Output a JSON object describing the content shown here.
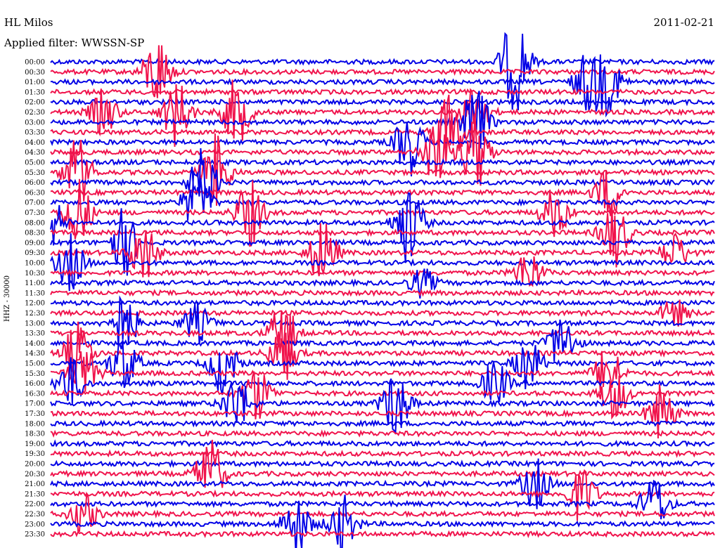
{
  "header": {
    "station": "HL Milos",
    "date": "2011-02-21",
    "filter": "Applied filter: WWSSN-SP"
  },
  "chart_data": {
    "type": "helicorder",
    "channel_label": "HHZ - 30000",
    "row_labels": [
      "00:00",
      "00:30",
      "01:00",
      "01:30",
      "02:00",
      "02:30",
      "03:00",
      "03:30",
      "04:00",
      "04:30",
      "05:00",
      "05:30",
      "06:00",
      "06:30",
      "07:00",
      "07:30",
      "08:00",
      "08:30",
      "09:00",
      "09:30",
      "10:00",
      "10:30",
      "11:00",
      "11:30",
      "12:00",
      "12:30",
      "13:00",
      "13:30",
      "14:00",
      "14:30",
      "15:00",
      "15:30",
      "16:00",
      "16:30",
      "17:00",
      "17:30",
      "18:00",
      "18:30",
      "19:00",
      "19:30",
      "20:00",
      "20:30",
      "21:00",
      "21:30",
      "22:00",
      "22:30",
      "23:00",
      "23:30"
    ],
    "line_colors": [
      "#0000e6",
      "#f0134c"
    ],
    "events": [
      {
        "row": 0,
        "pos": 0.7,
        "amp": 1.8
      },
      {
        "row": 1,
        "pos": 0.16,
        "amp": 1.3
      },
      {
        "row": 2,
        "pos": 0.84,
        "amp": 1.0
      },
      {
        "row": 2,
        "pos": 0.81,
        "amp": 1.1
      },
      {
        "row": 5,
        "pos": 0.08,
        "amp": 0.8
      },
      {
        "row": 5,
        "pos": 0.19,
        "amp": 1.2
      },
      {
        "row": 5,
        "pos": 0.28,
        "amp": 1.2
      },
      {
        "row": 5,
        "pos": 0.64,
        "amp": 1.0
      },
      {
        "row": 6,
        "pos": 0.64,
        "amp": 1.3
      },
      {
        "row": 7,
        "pos": 0.6,
        "amp": 1.4
      },
      {
        "row": 8,
        "pos": 0.54,
        "amp": 1.2
      },
      {
        "row": 9,
        "pos": 0.64,
        "amp": 1.4
      },
      {
        "row": 9,
        "pos": 0.58,
        "amp": 1.2
      },
      {
        "row": 11,
        "pos": 0.04,
        "amp": 1.3
      },
      {
        "row": 11,
        "pos": 0.25,
        "amp": 1.4
      },
      {
        "row": 12,
        "pos": 0.23,
        "amp": 1.2
      },
      {
        "row": 13,
        "pos": 0.84,
        "amp": 0.9
      },
      {
        "row": 14,
        "pos": 0.22,
        "amp": 1.1
      },
      {
        "row": 15,
        "pos": 0.04,
        "amp": 1.3
      },
      {
        "row": 15,
        "pos": 0.3,
        "amp": 1.2
      },
      {
        "row": 15,
        "pos": 0.76,
        "amp": 0.9
      },
      {
        "row": 16,
        "pos": 0.0,
        "amp": 0.9
      },
      {
        "row": 16,
        "pos": 0.54,
        "amp": 1.5
      },
      {
        "row": 17,
        "pos": 0.85,
        "amp": 1.2
      },
      {
        "row": 18,
        "pos": 0.11,
        "amp": 1.2
      },
      {
        "row": 19,
        "pos": 0.14,
        "amp": 1.1
      },
      {
        "row": 19,
        "pos": 0.41,
        "amp": 1.2
      },
      {
        "row": 19,
        "pos": 0.94,
        "amp": 0.7
      },
      {
        "row": 20,
        "pos": 0.03,
        "amp": 1.0
      },
      {
        "row": 21,
        "pos": 0.72,
        "amp": 0.8
      },
      {
        "row": 22,
        "pos": 0.56,
        "amp": 0.5
      },
      {
        "row": 25,
        "pos": 0.94,
        "amp": 0.5
      },
      {
        "row": 26,
        "pos": 0.11,
        "amp": 1.1
      },
      {
        "row": 26,
        "pos": 0.22,
        "amp": 0.7
      },
      {
        "row": 27,
        "pos": 0.35,
        "amp": 1.1
      },
      {
        "row": 28,
        "pos": 0.77,
        "amp": 1.0
      },
      {
        "row": 29,
        "pos": 0.04,
        "amp": 1.1
      },
      {
        "row": 29,
        "pos": 0.35,
        "amp": 1.0
      },
      {
        "row": 30,
        "pos": 0.11,
        "amp": 1.0
      },
      {
        "row": 30,
        "pos": 0.26,
        "amp": 1.1
      },
      {
        "row": 30,
        "pos": 0.72,
        "amp": 0.9
      },
      {
        "row": 31,
        "pos": 0.05,
        "amp": 0.9
      },
      {
        "row": 31,
        "pos": 0.84,
        "amp": 1.0
      },
      {
        "row": 32,
        "pos": 0.03,
        "amp": 0.9
      },
      {
        "row": 32,
        "pos": 0.67,
        "amp": 0.8
      },
      {
        "row": 33,
        "pos": 0.31,
        "amp": 1.0
      },
      {
        "row": 33,
        "pos": 0.85,
        "amp": 0.9
      },
      {
        "row": 34,
        "pos": 0.28,
        "amp": 1.0
      },
      {
        "row": 34,
        "pos": 0.52,
        "amp": 1.2
      },
      {
        "row": 35,
        "pos": 0.92,
        "amp": 1.0
      },
      {
        "row": 41,
        "pos": 0.24,
        "amp": 1.3
      },
      {
        "row": 42,
        "pos": 0.73,
        "amp": 0.9
      },
      {
        "row": 43,
        "pos": 0.8,
        "amp": 1.0
      },
      {
        "row": 44,
        "pos": 0.91,
        "amp": 1.0
      },
      {
        "row": 45,
        "pos": 0.05,
        "amp": 0.7
      },
      {
        "row": 46,
        "pos": 0.37,
        "amp": 1.1
      },
      {
        "row": 46,
        "pos": 0.44,
        "amp": 1.0
      }
    ]
  }
}
